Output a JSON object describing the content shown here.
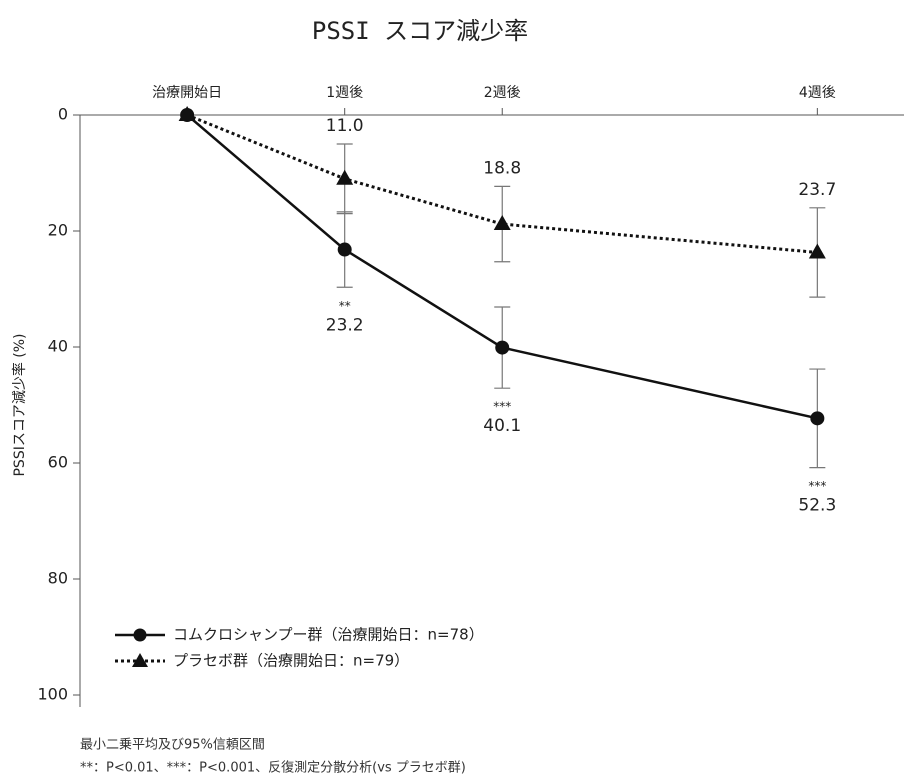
{
  "chart_data": {
    "type": "line",
    "title": "PSSI スコア減少率",
    "y_label": "PSSIスコア減少率 (%)",
    "x": [
      0,
      1,
      2,
      4
    ],
    "xlim": [
      -0.68,
      4.55
    ],
    "xticks": [
      {
        "value": 0,
        "label": "治療開始日"
      },
      {
        "value": 1,
        "label": "1週後"
      },
      {
        "value": 2,
        "label": "2週後"
      },
      {
        "value": 4,
        "label": "4週後"
      }
    ],
    "ylim": [
      0,
      100
    ],
    "yticks": [
      0,
      20,
      40,
      60,
      80,
      100
    ],
    "y_inverted": true,
    "legend": "lower left",
    "series": [
      {
        "name": "コムクロシャンプー群（治療開始日：n=78）",
        "color": "#111111",
        "line_style": "solid",
        "marker": "circle",
        "values": [
          0,
          23.2,
          40.1,
          52.3
        ],
        "errors": [
          null,
          6.5,
          7,
          8.5
        ],
        "value_labels": [
          null,
          "23.2",
          "40.1",
          "52.3"
        ],
        "significance": [
          null,
          "**",
          "***",
          "***"
        ],
        "label_position": "below"
      },
      {
        "name": "プラセボ群（治療開始日：n=79）",
        "color": "#111111",
        "line_style": "dotted",
        "marker": "triangle",
        "values": [
          0,
          11.0,
          18.8,
          23.7
        ],
        "errors": [
          null,
          6,
          6.5,
          7.7
        ],
        "value_labels": [
          null,
          "11.0",
          "18.8",
          "23.7"
        ],
        "label_position": "above"
      }
    ],
    "footnotes": [
      "最小二乗平均及び95%信頼区間",
      "**：P<0.01、***：P<0.001、反復測定分散分析(vs プラセボ群)"
    ]
  }
}
